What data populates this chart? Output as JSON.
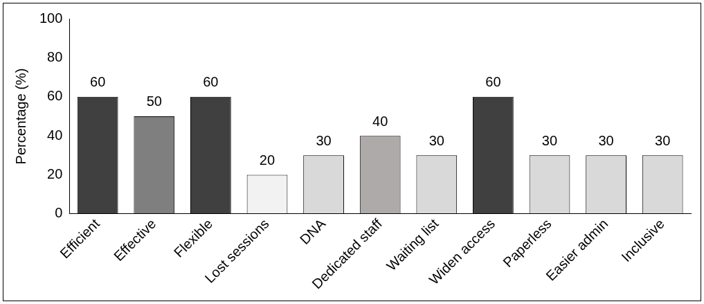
{
  "chart_data": {
    "type": "bar",
    "ylabel": "Percentage (%)",
    "categories": [
      "Efficient",
      "Effective",
      "Flexible",
      "Lost sessions",
      "DNA",
      "Dedicated staff",
      "Waiting list",
      "Widen access",
      "Paperless",
      "Easier admin",
      "Inclusive"
    ],
    "values": [
      60,
      50,
      60,
      20,
      30,
      40,
      30,
      60,
      30,
      30,
      30
    ],
    "colors": [
      "#404040",
      "#7f7f7f",
      "#404040",
      "#f2f2f2",
      "#d9d9d9",
      "#aeaaaa",
      "#d9d9d9",
      "#404040",
      "#d9d9d9",
      "#d9d9d9",
      "#d9d9d9"
    ],
    "ylim": [
      0,
      100
    ],
    "yticks": [
      0,
      20,
      40,
      60,
      80,
      100
    ],
    "grid": false,
    "legend": false,
    "data_labels": true
  }
}
